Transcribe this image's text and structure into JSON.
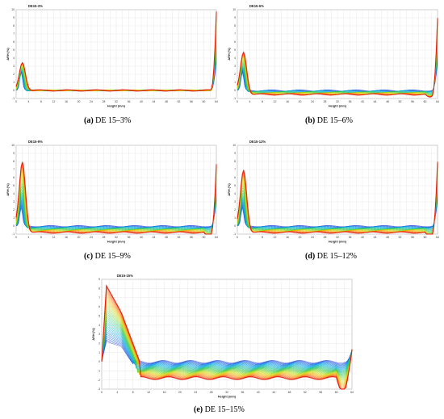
{
  "chart_data": [
    {
      "type": "line",
      "id": "a",
      "title": "DE15-3%",
      "xlabel": "Height (mm)",
      "ylabel": "ΔRH (%)",
      "caption_letter": "(a)",
      "caption_text": "DE 15–3%",
      "series_count": 30,
      "xlim": [
        0,
        64
      ],
      "ylim": [
        -1,
        10
      ],
      "peak_start": 2.2,
      "peak_end": 3.5,
      "mid_end": 0.0,
      "end_spike": 9.8,
      "shoulder": 0
    },
    {
      "type": "line",
      "id": "b",
      "title": "DE15-6%",
      "xlabel": "Height (mm)",
      "ylabel": "ΔRH (%)",
      "caption_letter": "(b)",
      "caption_text": "DE 15–6%",
      "series_count": 30,
      "xlim": [
        0,
        64
      ],
      "ylim": [
        -1,
        10
      ],
      "peak_start": 2.2,
      "peak_end": 4.8,
      "mid_end": -0.5,
      "end_spike": 9.5,
      "shoulder": 0
    },
    {
      "type": "line",
      "id": "c",
      "title": "DE15-9%",
      "xlabel": "Height (mm)",
      "ylabel": "ΔRH (%)",
      "caption_letter": "(c)",
      "caption_text": "DE 15–9%",
      "series_count": 30,
      "xlim": [
        0,
        64
      ],
      "ylim": [
        -1,
        10
      ],
      "peak_start": 2.2,
      "peak_end": 8.0,
      "mid_end": -0.8,
      "end_spike": 8.5,
      "shoulder": 0
    },
    {
      "type": "line",
      "id": "d",
      "title": "DE15-12%",
      "xlabel": "Height (mm)",
      "ylabel": "ΔRH (%)",
      "caption_letter": "(d)",
      "caption_text": "DE 15–12%",
      "series_count": 30,
      "xlim": [
        0,
        64
      ],
      "ylim": [
        -1,
        10
      ],
      "peak_start": 2.2,
      "peak_end": 7.0,
      "mid_end": -0.8,
      "end_spike": 8.8,
      "shoulder": 0
    },
    {
      "type": "line",
      "id": "e",
      "title": "DE15-15%",
      "xlabel": "Height (mm)",
      "ylabel": "ΔRH (%)",
      "caption_letter": "(e)",
      "caption_text": "DE 15–15%",
      "series_count": 40,
      "xlim": [
        0,
        64
      ],
      "ylim": [
        -3,
        9
      ],
      "peak_start": 2.2,
      "peak_end": 8.3,
      "mid_end": -1.8,
      "end_spike": 3.2,
      "shoulder": 1
    }
  ]
}
